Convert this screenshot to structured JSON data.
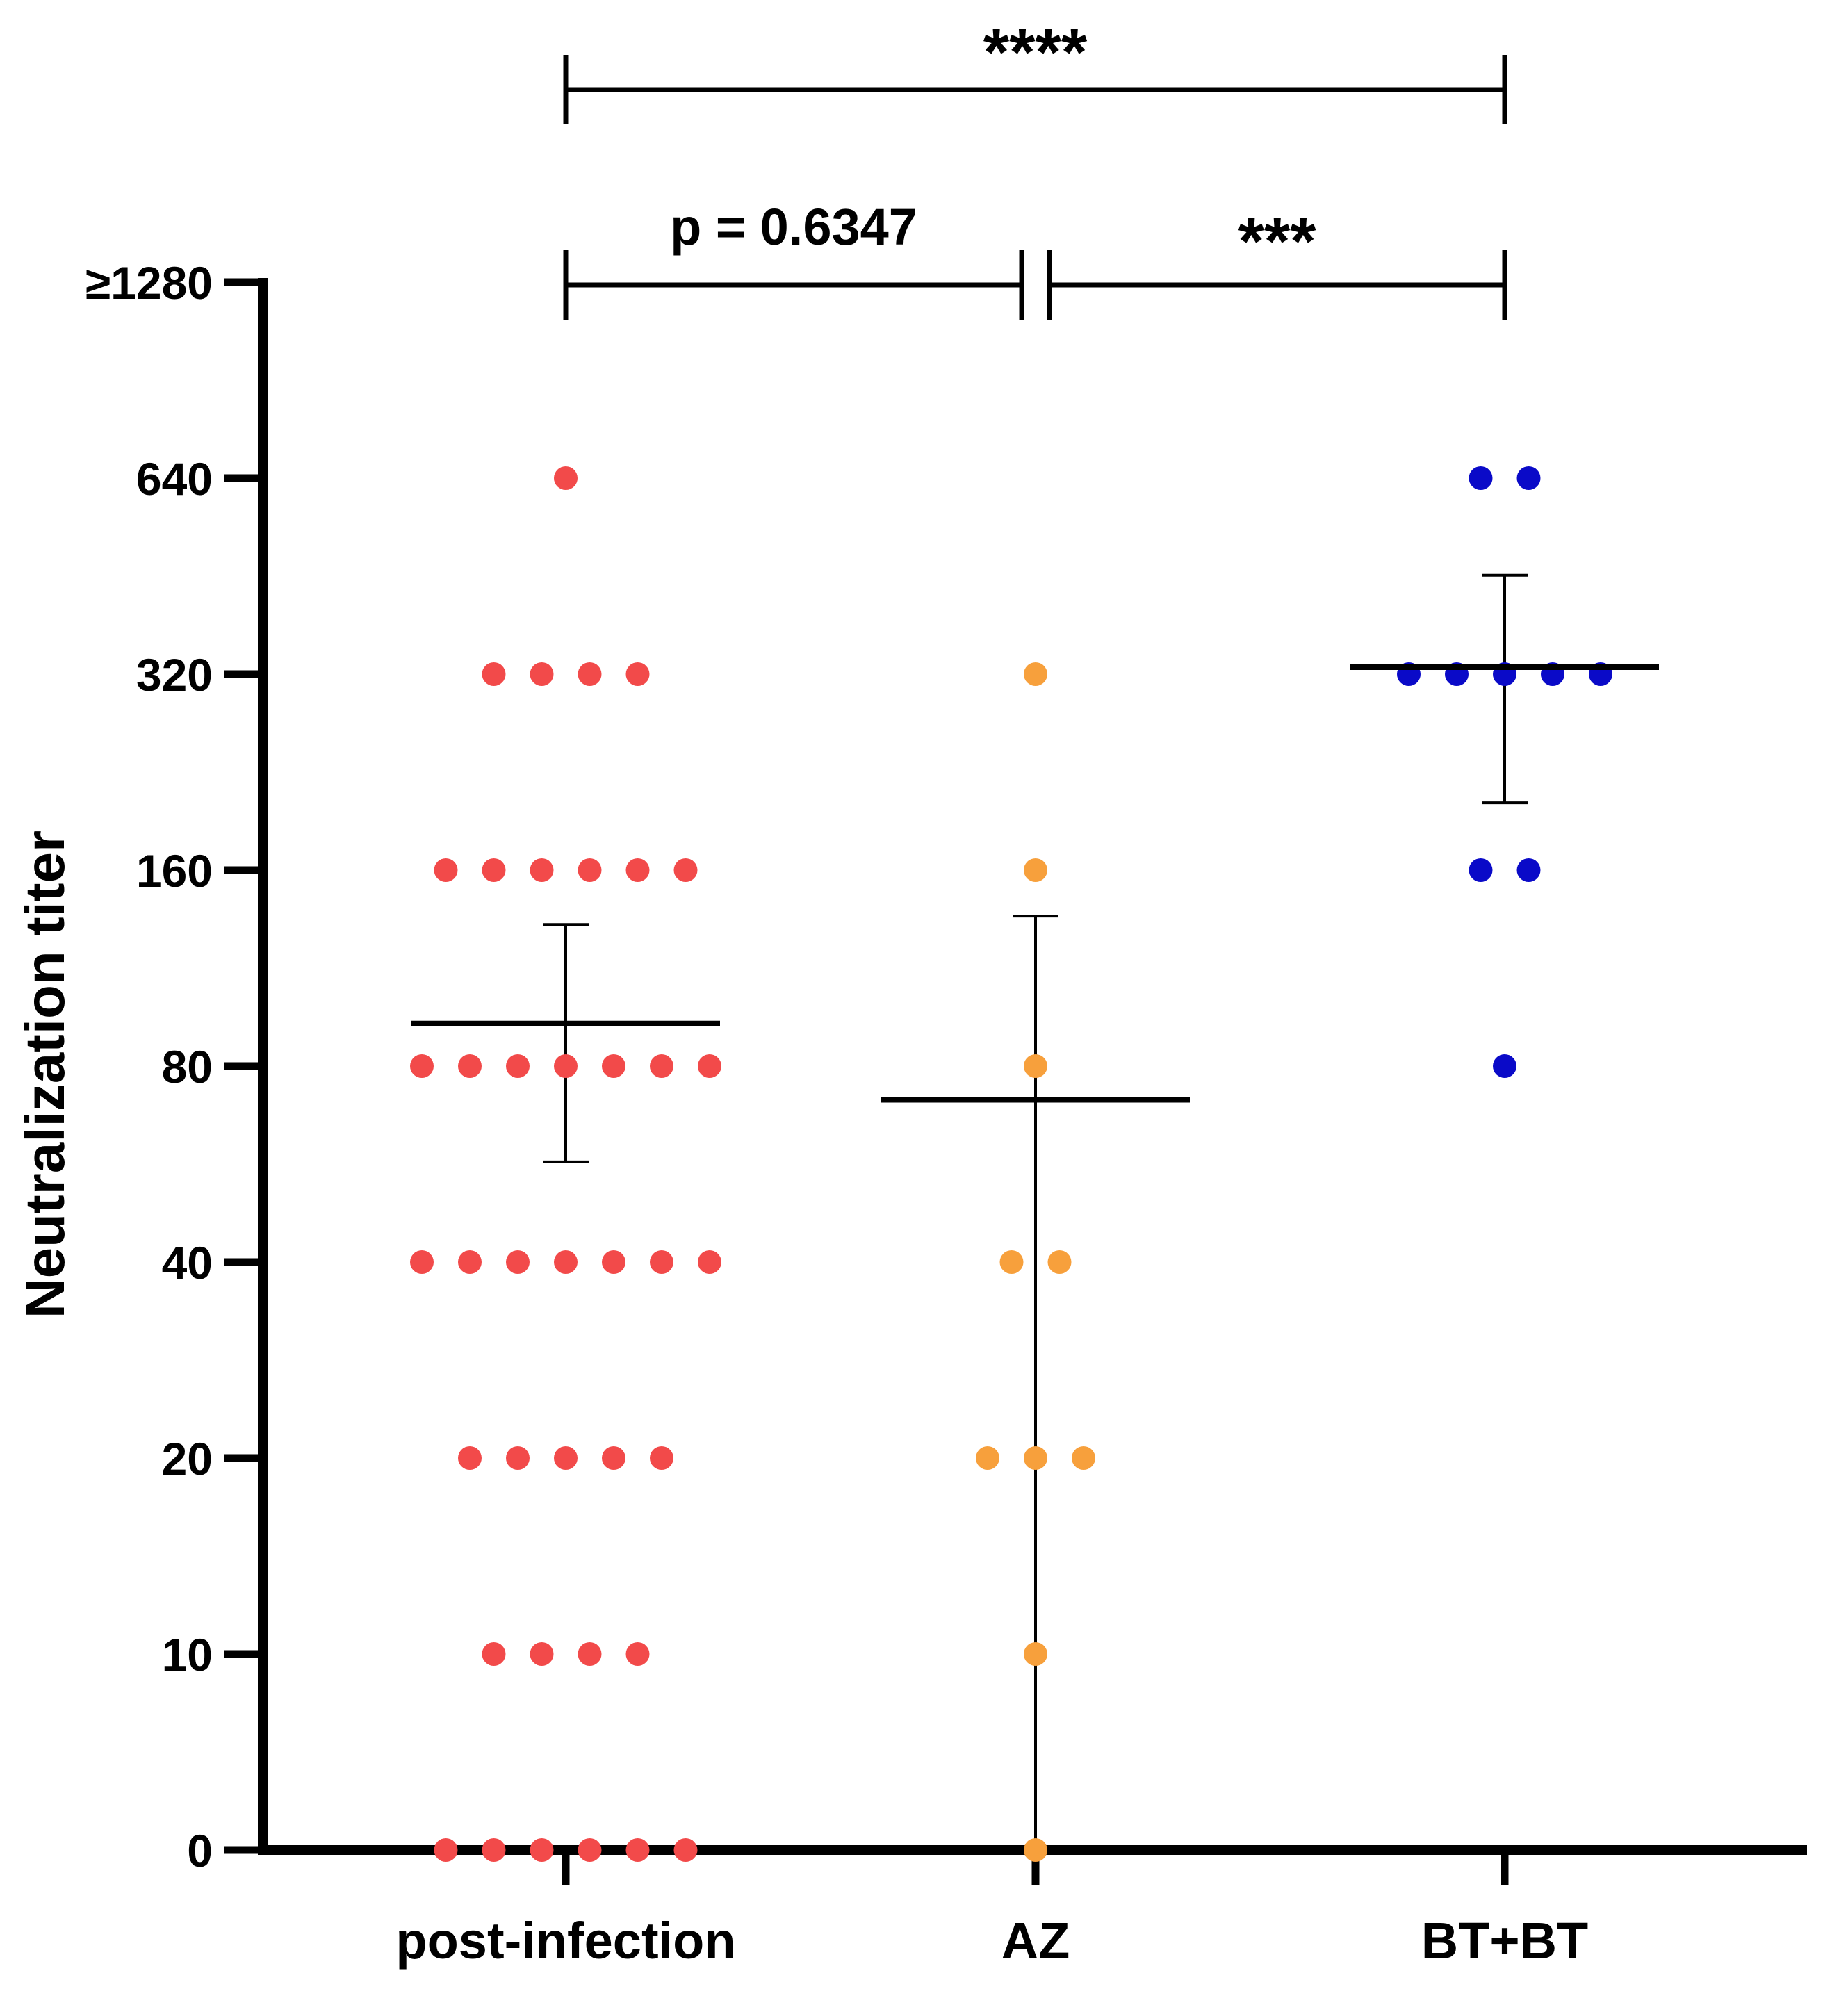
{
  "chart_data": {
    "type": "scatter",
    "subtype": "dot plot with mean and error bars",
    "ylabel": "Neutralization titer",
    "xlabel": "",
    "y_scale": "log2 (0 plotted at bottom)",
    "y_ticks": [
      0,
      10,
      20,
      40,
      80,
      160,
      320,
      640,
      1280
    ],
    "y_tick_labels": [
      "0",
      "10",
      "20",
      "40",
      "80",
      "160",
      "320",
      "640",
      "≥1280"
    ],
    "categories": [
      "post-infection",
      "AZ",
      "BT+BT"
    ],
    "series": [
      {
        "name": "post-infection",
        "color": "#f24a4a",
        "points": [
          {
            "value": 640,
            "count": 1
          },
          {
            "value": 320,
            "count": 4
          },
          {
            "value": 160,
            "count": 6
          },
          {
            "value": 80,
            "count": 7
          },
          {
            "value": 40,
            "count": 7
          },
          {
            "value": 20,
            "count": 5
          },
          {
            "value": 10,
            "count": 4
          },
          {
            "value": 0,
            "count": 6
          }
        ],
        "mean": 93,
        "error_upper": 132,
        "error_lower": 57
      },
      {
        "name": "AZ",
        "color": "#f7a03c",
        "points": [
          {
            "value": 320,
            "count": 1
          },
          {
            "value": 160,
            "count": 1
          },
          {
            "value": 80,
            "count": 1
          },
          {
            "value": 40,
            "count": 2
          },
          {
            "value": 20,
            "count": 3
          },
          {
            "value": 10,
            "count": 1
          },
          {
            "value": 0,
            "count": 1
          }
        ],
        "mean": 71,
        "error_upper": 136,
        "error_lower": 0
      },
      {
        "name": "BT+BT",
        "color": "#0a0ac8",
        "points": [
          {
            "value": 640,
            "count": 2
          },
          {
            "value": 320,
            "count": 5
          },
          {
            "value": 160,
            "count": 2
          },
          {
            "value": 80,
            "count": 1
          }
        ],
        "mean": 328,
        "error_upper": 454,
        "error_lower": 203
      }
    ],
    "annotations": [
      {
        "from": "post-infection",
        "to": "BT+BT",
        "label": "****",
        "level": "top"
      },
      {
        "from": "post-infection",
        "to": "AZ",
        "label": "p = 0.6347",
        "level": "lower"
      },
      {
        "from": "AZ",
        "to": "BT+BT",
        "label": "***",
        "level": "lower"
      }
    ]
  }
}
